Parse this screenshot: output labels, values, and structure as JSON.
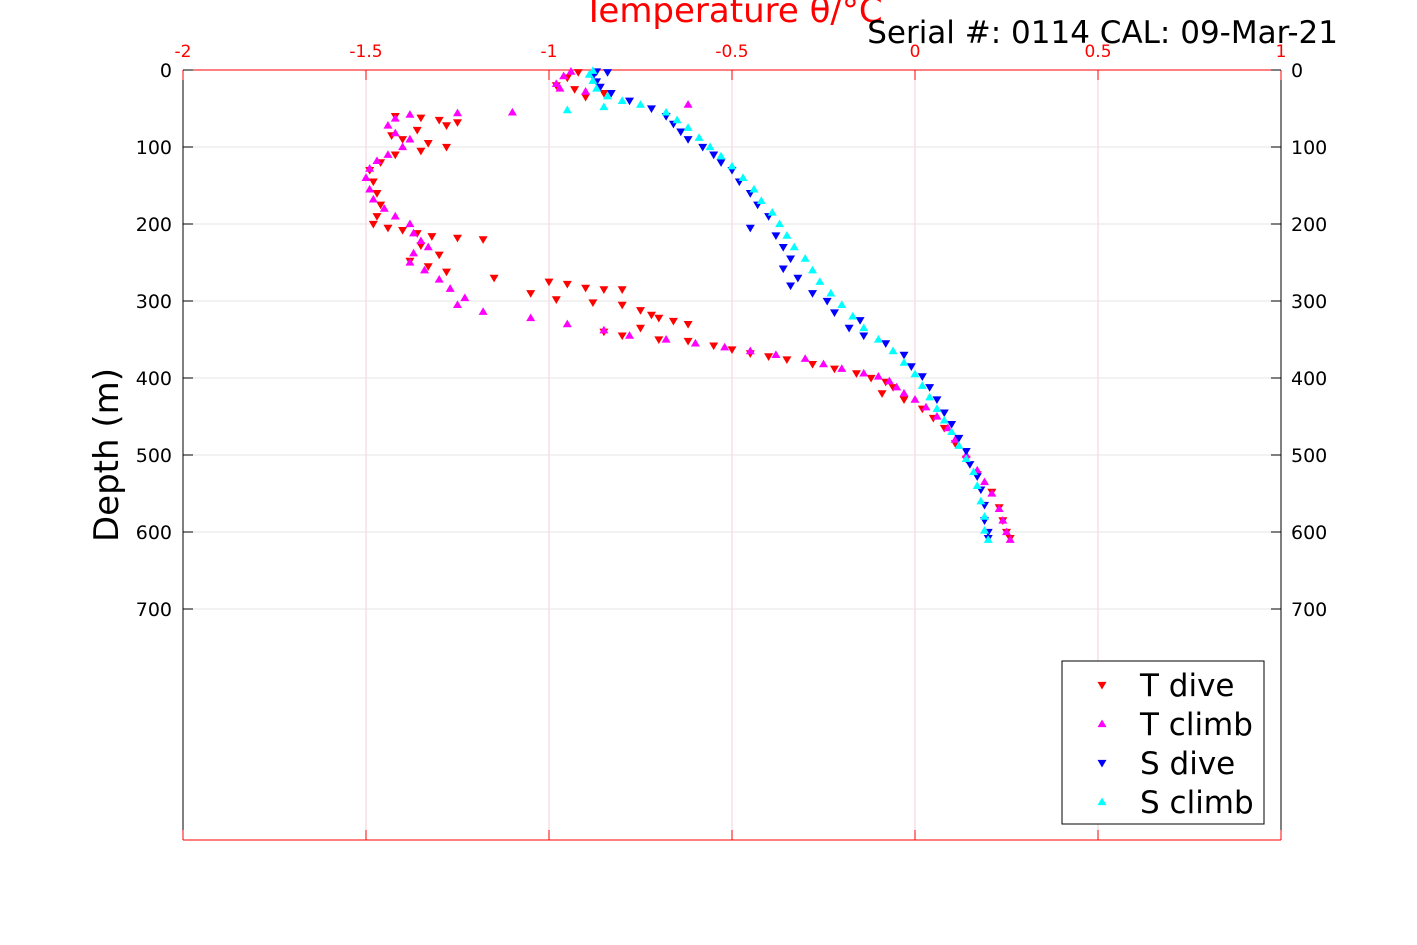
{
  "chart_data": {
    "type": "scatter",
    "title": "Temperature θ/°C",
    "annotation": "Serial #: 0114  CAL: 09-Mar-21",
    "xlabel": "Temperature θ/°C",
    "ylabel": "Depth (m)",
    "xlim": [
      -2,
      1
    ],
    "ylim": [
      0,
      1000
    ],
    "y_reversed": true,
    "x_axis_position": "top",
    "x_ticks": [
      "-2",
      "-1.5",
      "-1",
      "-0.5",
      "0",
      "0.5",
      "1"
    ],
    "y_ticks": [
      "0",
      "100",
      "200",
      "300",
      "400",
      "500",
      "600",
      "700"
    ],
    "grid": true,
    "legend_position": "bottom-right",
    "colors": {
      "axis": "#ff0000",
      "grid": "#e6e6e6",
      "t_dive": "#ff0000",
      "t_climb": "#ff00ff",
      "s_dive": "#0000ff",
      "s_climb": "#00ffff"
    },
    "series": [
      {
        "name": "T dive",
        "marker": "triangle-down",
        "color": "#ff0000",
        "points": [
          [
            -0.92,
            3
          ],
          [
            -0.95,
            10
          ],
          [
            -0.98,
            20
          ],
          [
            -0.93,
            25
          ],
          [
            -0.85,
            30
          ],
          [
            -0.9,
            35
          ],
          [
            -1.42,
            60
          ],
          [
            -1.35,
            62
          ],
          [
            -1.3,
            65
          ],
          [
            -1.25,
            68
          ],
          [
            -1.28,
            72
          ],
          [
            -1.36,
            78
          ],
          [
            -1.43,
            85
          ],
          [
            -1.4,
            90
          ],
          [
            -1.33,
            95
          ],
          [
            -1.28,
            100
          ],
          [
            -1.35,
            105
          ],
          [
            -1.42,
            110
          ],
          [
            -1.46,
            120
          ],
          [
            -1.49,
            130
          ],
          [
            -1.48,
            145
          ],
          [
            -1.47,
            160
          ],
          [
            -1.46,
            175
          ],
          [
            -1.47,
            190
          ],
          [
            -1.48,
            200
          ],
          [
            -1.44,
            205
          ],
          [
            -1.4,
            208
          ],
          [
            -1.36,
            212
          ],
          [
            -1.32,
            216
          ],
          [
            -1.25,
            218
          ],
          [
            -1.18,
            220
          ],
          [
            -1.35,
            228
          ],
          [
            -1.3,
            240
          ],
          [
            -1.38,
            248
          ],
          [
            -1.33,
            255
          ],
          [
            -1.28,
            262
          ],
          [
            -1.15,
            270
          ],
          [
            -1.0,
            275
          ],
          [
            -0.95,
            278
          ],
          [
            -0.9,
            283
          ],
          [
            -0.85,
            285
          ],
          [
            -0.8,
            285
          ],
          [
            -1.05,
            290
          ],
          [
            -0.98,
            298
          ],
          [
            -0.88,
            302
          ],
          [
            -0.8,
            305
          ],
          [
            -0.75,
            312
          ],
          [
            -0.72,
            318
          ],
          [
            -0.7,
            322
          ],
          [
            -0.66,
            326
          ],
          [
            -0.62,
            330
          ],
          [
            -0.75,
            335
          ],
          [
            -0.85,
            340
          ],
          [
            -0.8,
            345
          ],
          [
            -0.7,
            350
          ],
          [
            -0.62,
            352
          ],
          [
            -0.55,
            358
          ],
          [
            -0.5,
            363
          ],
          [
            -0.45,
            368
          ],
          [
            -0.4,
            372
          ],
          [
            -0.35,
            376
          ],
          [
            -0.28,
            382
          ],
          [
            -0.22,
            388
          ],
          [
            -0.16,
            394
          ],
          [
            -0.12,
            400
          ],
          [
            -0.08,
            405
          ],
          [
            -0.06,
            412
          ],
          [
            -0.09,
            420
          ],
          [
            -0.03,
            428
          ],
          [
            0.02,
            440
          ],
          [
            0.05,
            452
          ],
          [
            0.08,
            465
          ],
          [
            0.11,
            485
          ],
          [
            0.14,
            505
          ],
          [
            0.17,
            525
          ],
          [
            0.21,
            548
          ],
          [
            0.23,
            568
          ],
          [
            0.24,
            585
          ],
          [
            0.25,
            600
          ],
          [
            0.26,
            608
          ]
        ]
      },
      {
        "name": "T climb",
        "marker": "triangle-up",
        "color": "#ff00ff",
        "points": [
          [
            -0.94,
            2
          ],
          [
            -0.96,
            8
          ],
          [
            -0.98,
            18
          ],
          [
            -0.97,
            24
          ],
          [
            -0.9,
            28
          ],
          [
            -0.62,
            45
          ],
          [
            -1.1,
            55
          ],
          [
            -1.25,
            56
          ],
          [
            -1.38,
            58
          ],
          [
            -1.42,
            63
          ],
          [
            -1.44,
            72
          ],
          [
            -1.42,
            82
          ],
          [
            -1.38,
            90
          ],
          [
            -1.4,
            100
          ],
          [
            -1.44,
            110
          ],
          [
            -1.47,
            118
          ],
          [
            -1.49,
            128
          ],
          [
            -1.5,
            140
          ],
          [
            -1.49,
            155
          ],
          [
            -1.48,
            168
          ],
          [
            -1.45,
            180
          ],
          [
            -1.42,
            190
          ],
          [
            -1.38,
            200
          ],
          [
            -1.37,
            212
          ],
          [
            -1.35,
            222
          ],
          [
            -1.33,
            230
          ],
          [
            -1.37,
            238
          ],
          [
            -1.38,
            250
          ],
          [
            -1.34,
            260
          ],
          [
            -1.3,
            272
          ],
          [
            -1.27,
            284
          ],
          [
            -1.23,
            296
          ],
          [
            -1.25,
            305
          ],
          [
            -1.18,
            314
          ],
          [
            -1.05,
            322
          ],
          [
            -0.95,
            330
          ],
          [
            -0.85,
            338
          ],
          [
            -0.78,
            345
          ],
          [
            -0.68,
            350
          ],
          [
            -0.6,
            355
          ],
          [
            -0.52,
            360
          ],
          [
            -0.45,
            365
          ],
          [
            -0.38,
            370
          ],
          [
            -0.3,
            375
          ],
          [
            -0.25,
            382
          ],
          [
            -0.2,
            388
          ],
          [
            -0.14,
            394
          ],
          [
            -0.1,
            398
          ],
          [
            -0.07,
            404
          ],
          [
            -0.05,
            412
          ],
          [
            -0.03,
            420
          ],
          [
            0.0,
            428
          ],
          [
            0.03,
            438
          ],
          [
            0.06,
            450
          ],
          [
            0.09,
            465
          ],
          [
            0.11,
            480
          ],
          [
            0.14,
            500
          ],
          [
            0.17,
            520
          ],
          [
            0.19,
            535
          ],
          [
            0.21,
            550
          ],
          [
            0.23,
            570
          ],
          [
            0.24,
            585
          ],
          [
            0.25,
            600
          ],
          [
            0.26,
            610
          ]
        ]
      },
      {
        "name": "S dive",
        "marker": "triangle-down",
        "color": "#0000ff",
        "points": [
          [
            -0.87,
            2
          ],
          [
            -0.84,
            3
          ],
          [
            -0.88,
            8
          ],
          [
            -0.87,
            15
          ],
          [
            -0.86,
            22
          ],
          [
            -0.83,
            30
          ],
          [
            -0.78,
            40
          ],
          [
            -0.72,
            50
          ],
          [
            -0.68,
            60
          ],
          [
            -0.66,
            70
          ],
          [
            -0.64,
            80
          ],
          [
            -0.62,
            90
          ],
          [
            -0.58,
            100
          ],
          [
            -0.55,
            110
          ],
          [
            -0.53,
            120
          ],
          [
            -0.5,
            130
          ],
          [
            -0.48,
            145
          ],
          [
            -0.45,
            160
          ],
          [
            -0.43,
            175
          ],
          [
            -0.4,
            190
          ],
          [
            -0.45,
            205
          ],
          [
            -0.38,
            215
          ],
          [
            -0.36,
            230
          ],
          [
            -0.34,
            245
          ],
          [
            -0.36,
            258
          ],
          [
            -0.32,
            270
          ],
          [
            -0.34,
            280
          ],
          [
            -0.28,
            290
          ],
          [
            -0.24,
            300
          ],
          [
            -0.22,
            315
          ],
          [
            -0.15,
            325
          ],
          [
            -0.18,
            335
          ],
          [
            -0.14,
            345
          ],
          [
            -0.08,
            355
          ],
          [
            -0.03,
            370
          ],
          [
            -0.01,
            385
          ],
          [
            0.02,
            398
          ],
          [
            0.04,
            412
          ],
          [
            0.06,
            428
          ],
          [
            0.08,
            445
          ],
          [
            0.1,
            460
          ],
          [
            0.12,
            478
          ],
          [
            0.14,
            495
          ],
          [
            0.15,
            512
          ],
          [
            0.17,
            528
          ],
          [
            0.18,
            545
          ],
          [
            0.19,
            565
          ],
          [
            0.19,
            585
          ],
          [
            0.2,
            600
          ],
          [
            0.2,
            608
          ]
        ]
      },
      {
        "name": "S climb",
        "marker": "triangle-up",
        "color": "#00ffff",
        "points": [
          [
            -0.88,
            1
          ],
          [
            -0.89,
            6
          ],
          [
            -0.88,
            14
          ],
          [
            -0.87,
            24
          ],
          [
            -0.84,
            34
          ],
          [
            -0.8,
            40
          ],
          [
            -0.85,
            48
          ],
          [
            -0.95,
            52
          ],
          [
            -0.75,
            45
          ],
          [
            -0.68,
            55
          ],
          [
            -0.65,
            65
          ],
          [
            -0.62,
            75
          ],
          [
            -0.59,
            88
          ],
          [
            -0.56,
            100
          ],
          [
            -0.53,
            112
          ],
          [
            -0.5,
            125
          ],
          [
            -0.47,
            140
          ],
          [
            -0.44,
            155
          ],
          [
            -0.42,
            170
          ],
          [
            -0.39,
            185
          ],
          [
            -0.37,
            200
          ],
          [
            -0.35,
            215
          ],
          [
            -0.33,
            230
          ],
          [
            -0.3,
            245
          ],
          [
            -0.28,
            260
          ],
          [
            -0.26,
            275
          ],
          [
            -0.23,
            290
          ],
          [
            -0.2,
            305
          ],
          [
            -0.17,
            320
          ],
          [
            -0.14,
            335
          ],
          [
            -0.1,
            350
          ],
          [
            -0.06,
            365
          ],
          [
            -0.03,
            380
          ],
          [
            0.0,
            395
          ],
          [
            0.02,
            410
          ],
          [
            0.04,
            425
          ],
          [
            0.06,
            440
          ],
          [
            0.08,
            455
          ],
          [
            0.1,
            470
          ],
          [
            0.12,
            488
          ],
          [
            0.14,
            505
          ],
          [
            0.16,
            522
          ],
          [
            0.17,
            540
          ],
          [
            0.18,
            560
          ],
          [
            0.19,
            580
          ],
          [
            0.19,
            598
          ],
          [
            0.2,
            610
          ]
        ]
      }
    ]
  }
}
